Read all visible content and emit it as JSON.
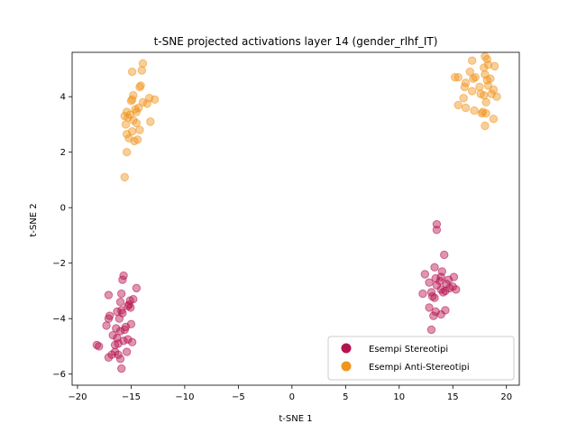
{
  "chart_data": {
    "type": "scatter",
    "title": "t-SNE projected activations layer 14 (gender_rlhf_IT)",
    "xlabel": "t-SNE 1",
    "ylabel": "t-SNE 2",
    "xlim": [
      -20.5,
      21.2
    ],
    "ylim": [
      -6.4,
      5.6
    ],
    "xticks": [
      -20,
      -15,
      -10,
      -5,
      0,
      5,
      10,
      15,
      20
    ],
    "yticks": [
      -6,
      -4,
      -2,
      0,
      2,
      4
    ],
    "grid": false,
    "legend_position": "lower-right",
    "point_opacity": 0.45,
    "series": [
      {
        "name": "Esempi Stereotipi",
        "color": "#b5134f",
        "points": [
          [
            -15.7,
            -2.45
          ],
          [
            -15.8,
            -2.6
          ],
          [
            -14.5,
            -2.9
          ],
          [
            -15.9,
            -3.1
          ],
          [
            -17.1,
            -3.15
          ],
          [
            -15.1,
            -3.35
          ],
          [
            -14.8,
            -3.3
          ],
          [
            -16.0,
            -3.4
          ],
          [
            -15.2,
            -3.5
          ],
          [
            -15.05,
            -3.6
          ],
          [
            -15.3,
            -3.55
          ],
          [
            -16.3,
            -3.75
          ],
          [
            -15.9,
            -3.7
          ],
          [
            -17.0,
            -3.9
          ],
          [
            -17.1,
            -4.0
          ],
          [
            -15.8,
            -3.8
          ],
          [
            -16.1,
            -4.0
          ],
          [
            -15.0,
            -4.2
          ],
          [
            -17.3,
            -4.25
          ],
          [
            -15.5,
            -4.3
          ],
          [
            -16.4,
            -4.35
          ],
          [
            -16.0,
            -4.45
          ],
          [
            -15.6,
            -4.4
          ],
          [
            -16.7,
            -4.6
          ],
          [
            -16.3,
            -4.7
          ],
          [
            -15.3,
            -4.75
          ],
          [
            -14.9,
            -4.85
          ],
          [
            -15.7,
            -4.8
          ],
          [
            -16.2,
            -4.9
          ],
          [
            -16.5,
            -4.95
          ],
          [
            -18.2,
            -4.95
          ],
          [
            -18.0,
            -5.0
          ],
          [
            -16.5,
            -5.2
          ],
          [
            -15.4,
            -5.2
          ],
          [
            -16.8,
            -5.3
          ],
          [
            -16.2,
            -5.3
          ],
          [
            -17.1,
            -5.4
          ],
          [
            -16.0,
            -5.45
          ],
          [
            -15.9,
            -5.8
          ],
          [
            13.5,
            -0.6
          ],
          [
            13.5,
            -0.8
          ],
          [
            14.2,
            -1.7
          ],
          [
            13.3,
            -2.15
          ],
          [
            14.0,
            -2.3
          ],
          [
            12.4,
            -2.4
          ],
          [
            15.1,
            -2.5
          ],
          [
            13.9,
            -2.5
          ],
          [
            13.4,
            -2.55
          ],
          [
            14.6,
            -2.6
          ],
          [
            12.8,
            -2.7
          ],
          [
            13.8,
            -2.65
          ],
          [
            14.4,
            -2.75
          ],
          [
            13.5,
            -2.8
          ],
          [
            15.0,
            -2.85
          ],
          [
            13.9,
            -2.95
          ],
          [
            15.3,
            -2.95
          ],
          [
            14.7,
            -2.9
          ],
          [
            14.1,
            -3.05
          ],
          [
            14.3,
            -3.0
          ],
          [
            12.2,
            -3.1
          ],
          [
            13.0,
            -3.05
          ],
          [
            13.3,
            -3.25
          ],
          [
            13.1,
            -3.2
          ],
          [
            12.8,
            -3.6
          ],
          [
            13.4,
            -3.75
          ],
          [
            14.3,
            -3.7
          ],
          [
            13.9,
            -3.85
          ],
          [
            13.2,
            -3.9
          ],
          [
            13.0,
            -4.4
          ]
        ]
      },
      {
        "name": "Esempi Anti-Stereotipi",
        "color": "#f0951e",
        "points": [
          [
            -13.9,
            5.2
          ],
          [
            -14.9,
            4.9
          ],
          [
            -14.0,
            4.95
          ],
          [
            -14.1,
            4.4
          ],
          [
            -14.2,
            4.35
          ],
          [
            -14.8,
            4.05
          ],
          [
            -13.3,
            3.95
          ],
          [
            -15.0,
            3.85
          ],
          [
            -12.8,
            3.9
          ],
          [
            -14.9,
            3.9
          ],
          [
            -13.9,
            3.8
          ],
          [
            -13.5,
            3.75
          ],
          [
            -14.6,
            3.55
          ],
          [
            -14.3,
            3.6
          ],
          [
            -14.5,
            3.45
          ],
          [
            -15.4,
            3.45
          ],
          [
            -15.1,
            3.35
          ],
          [
            -15.6,
            3.3
          ],
          [
            -15.3,
            3.25
          ],
          [
            -14.8,
            3.15
          ],
          [
            -13.2,
            3.1
          ],
          [
            -14.5,
            3.05
          ],
          [
            -15.5,
            3.0
          ],
          [
            -14.2,
            2.8
          ],
          [
            -14.9,
            2.75
          ],
          [
            -15.4,
            2.65
          ],
          [
            -15.2,
            2.5
          ],
          [
            -14.7,
            2.4
          ],
          [
            -14.4,
            2.45
          ],
          [
            -15.4,
            2.0
          ],
          [
            -15.6,
            1.1
          ],
          [
            18.0,
            5.45
          ],
          [
            16.8,
            5.3
          ],
          [
            18.2,
            5.35
          ],
          [
            18.9,
            5.1
          ],
          [
            18.3,
            5.15
          ],
          [
            17.9,
            5.05
          ],
          [
            16.6,
            4.9
          ],
          [
            18.0,
            4.8
          ],
          [
            15.5,
            4.7
          ],
          [
            15.2,
            4.7
          ],
          [
            17.1,
            4.7
          ],
          [
            16.9,
            4.65
          ],
          [
            18.5,
            4.65
          ],
          [
            18.2,
            4.6
          ],
          [
            16.2,
            4.5
          ],
          [
            16.1,
            4.35
          ],
          [
            17.5,
            4.35
          ],
          [
            18.3,
            4.4
          ],
          [
            18.8,
            4.25
          ],
          [
            16.8,
            4.2
          ],
          [
            17.6,
            4.1
          ],
          [
            17.9,
            4.05
          ],
          [
            18.6,
            4.1
          ],
          [
            19.1,
            4.0
          ],
          [
            16.0,
            3.95
          ],
          [
            18.1,
            3.8
          ],
          [
            15.5,
            3.7
          ],
          [
            16.2,
            3.6
          ],
          [
            17.0,
            3.5
          ],
          [
            17.8,
            3.45
          ],
          [
            18.1,
            3.4
          ],
          [
            17.7,
            3.4
          ],
          [
            18.8,
            3.2
          ],
          [
            18.0,
            2.95
          ]
        ]
      }
    ]
  }
}
